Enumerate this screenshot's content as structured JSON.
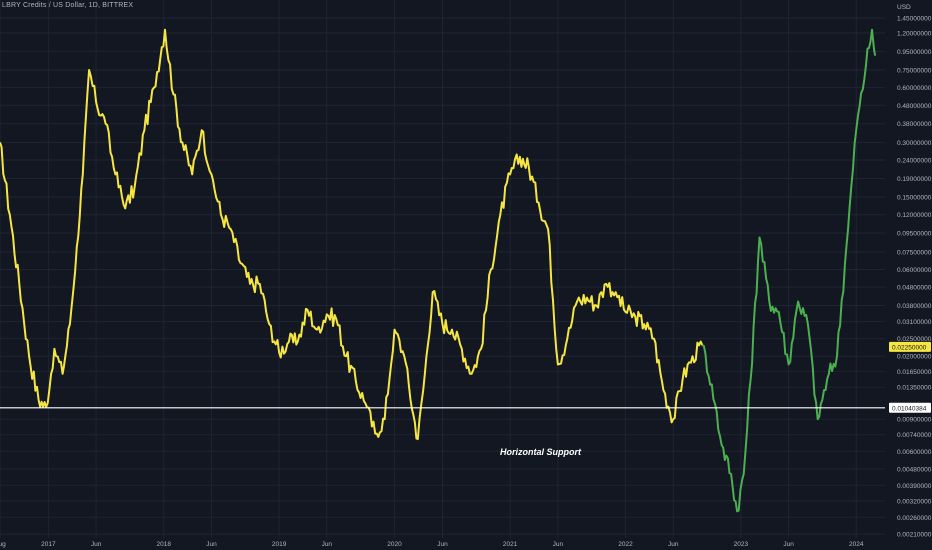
{
  "header": {
    "title": "LBRY Credits / US Dollar, 1D, BITTREX"
  },
  "colors": {
    "background": "#131722",
    "grid": "#1f2433",
    "axis_text": "#b2b5be",
    "series_primary": "#f5e642",
    "series_secondary": "#4caf50",
    "support_line": "#ffffff",
    "price_badge_bg": "#f5e642",
    "price_badge_text": "#131722",
    "support_badge_bg": "#ffffff",
    "support_badge_text": "#131722"
  },
  "chart_data": {
    "type": "line",
    "title": "LBRY Credits / US Dollar, 1D, BITTREX",
    "y_axis_unit": "USD",
    "y_scale": "log",
    "ylim": [
      0.002,
      1.45
    ],
    "xlim": [
      "2016-08-01",
      "2024-04-01"
    ],
    "grid": true,
    "legend": "none",
    "y_ticks": [
      1.45,
      1.2,
      0.95,
      0.75,
      0.6,
      0.48,
      0.38,
      0.3,
      0.24,
      0.19,
      0.15,
      0.12,
      0.095,
      0.075,
      0.06,
      0.048,
      0.038,
      0.031,
      0.025,
      0.02,
      0.0165,
      0.0135,
      0.009,
      0.0074,
      0.006,
      0.0048,
      0.0039,
      0.0032,
      0.0026,
      0.0021
    ],
    "y_tick_labels": [
      "1.45000000",
      "1.20000000",
      "0.95000000",
      "0.75000000",
      "0.60000000",
      "0.48000000",
      "0.38000000",
      "0.30000000",
      "0.24000000",
      "0.19000000",
      "0.15000000",
      "0.12000000",
      "0.09500000",
      "0.07500000",
      "0.06000000",
      "0.04800000",
      "0.03800000",
      "0.03100000",
      "0.02500000",
      "0.02000000",
      "0.01650000",
      "0.01350000",
      "0.00900000",
      "0.00740000",
      "0.00600000",
      "0.00480000",
      "0.00390000",
      "0.00320000",
      "0.00260000",
      "0.00210000"
    ],
    "x_ticks": [
      {
        "date": "2016-08-01",
        "label": "Aug"
      },
      {
        "date": "2017-01-01",
        "label": "2017"
      },
      {
        "date": "2017-06-01",
        "label": "Jun"
      },
      {
        "date": "2018-01-01",
        "label": "2018"
      },
      {
        "date": "2018-06-01",
        "label": "Jun"
      },
      {
        "date": "2019-01-01",
        "label": "2019"
      },
      {
        "date": "2019-06-01",
        "label": "Jun"
      },
      {
        "date": "2020-01-01",
        "label": "2020"
      },
      {
        "date": "2020-06-01",
        "label": "Jun"
      },
      {
        "date": "2021-01-01",
        "label": "2021"
      },
      {
        "date": "2021-06-01",
        "label": "Jun"
      },
      {
        "date": "2022-01-01",
        "label": "2022"
      },
      {
        "date": "2022-06-01",
        "label": "Jun"
      },
      {
        "date": "2023-01-01",
        "label": "2023"
      },
      {
        "date": "2023-06-01",
        "label": "Jun"
      },
      {
        "date": "2024-01-01",
        "label": "2024"
      }
    ],
    "series": [
      {
        "color": "#f5e642",
        "points": [
          [
            "2016-08-01",
            0.3
          ],
          [
            "2016-09-01",
            0.12
          ],
          [
            "2016-10-01",
            0.05
          ],
          [
            "2016-11-01",
            0.02
          ],
          [
            "2016-12-01",
            0.0115
          ],
          [
            "2016-12-25",
            0.0105
          ],
          [
            "2017-01-20",
            0.022
          ],
          [
            "2017-02-15",
            0.016
          ],
          [
            "2017-03-10",
            0.03
          ],
          [
            "2017-04-01",
            0.08
          ],
          [
            "2017-04-20",
            0.2
          ],
          [
            "2017-05-10",
            0.75
          ],
          [
            "2017-06-01",
            0.5
          ],
          [
            "2017-07-01",
            0.38
          ],
          [
            "2017-08-01",
            0.2
          ],
          [
            "2017-09-01",
            0.13
          ],
          [
            "2017-10-01",
            0.17
          ],
          [
            "2017-11-01",
            0.35
          ],
          [
            "2017-12-01",
            0.6
          ],
          [
            "2018-01-05",
            1.25
          ],
          [
            "2018-02-01",
            0.55
          ],
          [
            "2018-03-01",
            0.3
          ],
          [
            "2018-04-01",
            0.2
          ],
          [
            "2018-05-01",
            0.35
          ],
          [
            "2018-06-01",
            0.2
          ],
          [
            "2018-07-01",
            0.12
          ],
          [
            "2018-08-01",
            0.1
          ],
          [
            "2018-09-01",
            0.065
          ],
          [
            "2018-10-01",
            0.05
          ],
          [
            "2018-11-01",
            0.05
          ],
          [
            "2018-12-01",
            0.03
          ],
          [
            "2019-01-01",
            0.021
          ],
          [
            "2019-02-01",
            0.024
          ],
          [
            "2019-03-01",
            0.024
          ],
          [
            "2019-04-01",
            0.036
          ],
          [
            "2019-05-01",
            0.028
          ],
          [
            "2019-06-01",
            0.034
          ],
          [
            "2019-07-01",
            0.032
          ],
          [
            "2019-08-01",
            0.02
          ],
          [
            "2019-09-01",
            0.0145
          ],
          [
            "2019-10-01",
            0.011
          ],
          [
            "2019-11-01",
            0.0075
          ],
          [
            "2019-12-01",
            0.009
          ],
          [
            "2020-01-01",
            0.028
          ],
          [
            "2020-02-01",
            0.02
          ],
          [
            "2020-03-01",
            0.0095
          ],
          [
            "2020-03-15",
            0.007
          ],
          [
            "2020-04-01",
            0.013
          ],
          [
            "2020-05-01",
            0.045
          ],
          [
            "2020-06-01",
            0.03
          ],
          [
            "2020-07-01",
            0.028
          ],
          [
            "2020-08-01",
            0.022
          ],
          [
            "2020-09-01",
            0.016
          ],
          [
            "2020-10-01",
            0.022
          ],
          [
            "2020-11-01",
            0.06
          ],
          [
            "2020-12-01",
            0.12
          ],
          [
            "2021-01-01",
            0.2
          ],
          [
            "2021-02-01",
            0.25
          ],
          [
            "2021-03-01",
            0.22
          ],
          [
            "2021-04-01",
            0.14
          ],
          [
            "2021-05-01",
            0.1
          ],
          [
            "2021-06-01",
            0.018
          ],
          [
            "2021-07-01",
            0.025
          ],
          [
            "2021-08-01",
            0.04
          ],
          [
            "2021-09-01",
            0.042
          ],
          [
            "2021-10-01",
            0.038
          ],
          [
            "2021-11-01",
            0.05
          ],
          [
            "2021-12-01",
            0.045
          ],
          [
            "2022-01-01",
            0.035
          ],
          [
            "2022-02-01",
            0.033
          ],
          [
            "2022-03-01",
            0.03
          ],
          [
            "2022-04-01",
            0.025
          ],
          [
            "2022-05-01",
            0.013
          ],
          [
            "2022-06-01",
            0.009
          ],
          [
            "2022-07-01",
            0.015
          ],
          [
            "2022-08-01",
            0.02
          ],
          [
            "2022-09-01",
            0.023
          ]
        ]
      },
      {
        "color": "#4caf50",
        "points": [
          [
            "2022-09-01",
            0.023
          ],
          [
            "2022-10-01",
            0.014
          ],
          [
            "2022-11-01",
            0.0065
          ],
          [
            "2022-12-01",
            0.0045
          ],
          [
            "2022-12-20",
            0.0028
          ],
          [
            "2023-01-10",
            0.0045
          ],
          [
            "2023-02-01",
            0.015
          ],
          [
            "2023-03-01",
            0.09
          ],
          [
            "2023-04-01",
            0.04
          ],
          [
            "2023-05-01",
            0.035
          ],
          [
            "2023-06-01",
            0.018
          ],
          [
            "2023-07-01",
            0.04
          ],
          [
            "2023-08-01",
            0.03
          ],
          [
            "2023-09-01",
            0.009
          ],
          [
            "2023-10-01",
            0.015
          ],
          [
            "2023-11-01",
            0.02
          ],
          [
            "2023-12-01",
            0.08
          ],
          [
            "2024-01-01",
            0.35
          ],
          [
            "2024-02-01",
            0.8
          ],
          [
            "2024-02-20",
            1.25
          ],
          [
            "2024-03-01",
            0.9
          ]
        ]
      }
    ],
    "current_price_label": "0.02250000",
    "current_price": 0.0225,
    "horizontal_support": {
      "value": 0.01040384,
      "label": "0.01040384",
      "annotation": "Horizontal Support"
    }
  }
}
